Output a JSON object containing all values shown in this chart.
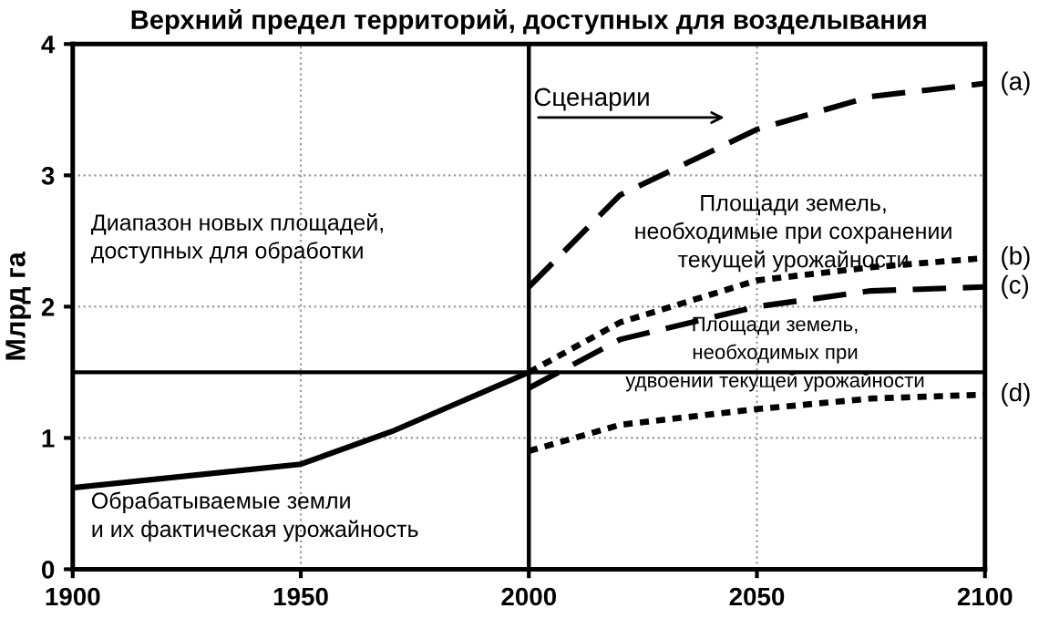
{
  "chart_data": {
    "type": "line",
    "title": "Верхний предел территорий, доступных для возделывания",
    "ylabel": "Млрд га",
    "xlim": [
      1900,
      2100
    ],
    "xticks": [
      1900,
      1950,
      2000,
      2050,
      2100
    ],
    "ylim": [
      0,
      4
    ],
    "yticks": [
      0,
      1,
      2,
      3,
      4
    ],
    "grid": true,
    "legend": false,
    "marker": "none",
    "series": [
      {
        "color": "#000000",
        "line_style": "solid",
        "x": [
          1900,
          1950,
          1970,
          2000
        ],
        "values": [
          0.62,
          0.8,
          1.05,
          1.5
        ]
      },
      {
        "name": "(a)",
        "color": "#000000",
        "line_style": "dashed",
        "x": [
          2000,
          2020,
          2050,
          2075,
          2100
        ],
        "values": [
          2.15,
          2.85,
          3.35,
          3.6,
          3.7
        ]
      },
      {
        "name": "(b)",
        "color": "#000000",
        "line_style": "dotted",
        "x": [
          2000,
          2020,
          2050,
          2075,
          2100
        ],
        "values": [
          1.5,
          1.88,
          2.2,
          2.3,
          2.37
        ]
      },
      {
        "name": "(c)",
        "color": "#000000",
        "line_style": "dashed",
        "x": [
          2000,
          2020,
          2050,
          2075,
          2100
        ],
        "values": [
          1.38,
          1.75,
          2.0,
          2.12,
          2.15
        ]
      },
      {
        "name": "(d)",
        "color": "#000000",
        "line_style": "dotted",
        "x": [
          2000,
          2020,
          2050,
          2075,
          2100
        ],
        "values": [
          0.9,
          1.1,
          1.22,
          1.3,
          1.33
        ]
      }
    ],
    "ref_lines": [
      {
        "axis": "y",
        "value": 1.5,
        "color": "#000000"
      },
      {
        "axis": "x",
        "value": 2000,
        "color": "#000000"
      }
    ],
    "annotations": [
      "Сценарии",
      "Диапазон новых площадей,\nдоступных для обработки",
      "Площади земель,\nнеобходимые при сохранении\nтекущей урожайности",
      "Площади земель,\nнеобходимых при\nудвоении текущей урожайности",
      "Обрабатываемые земли\nи их фактическая урожайность"
    ]
  }
}
